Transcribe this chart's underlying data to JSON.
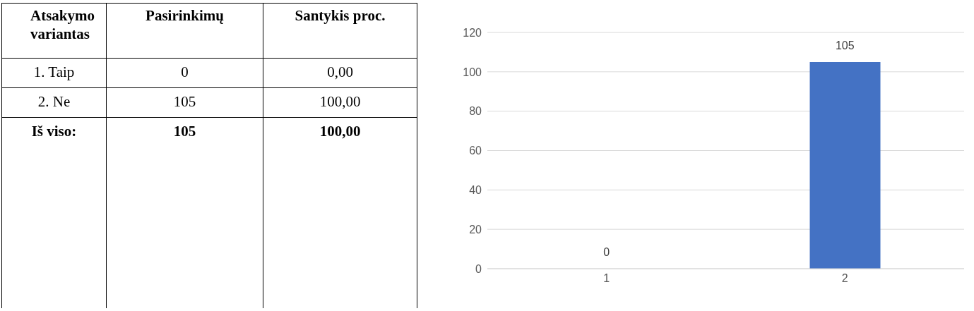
{
  "chart_data": [
    {
      "type": "other",
      "annotations": [
        "Atsakymo variantas",
        "Pasirinkimų",
        "Santykis proc.",
        "1. Taip",
        "0",
        "0,00",
        "2. Ne",
        "105",
        "100,00",
        "Iš viso:",
        "105",
        "100,00"
      ]
    },
    {
      "type": "bar",
      "categories": [
        "1",
        "2"
      ],
      "values": [
        0,
        105
      ],
      "color": "#4472c4",
      "ylim": [
        0,
        120
      ],
      "yticks": [
        0,
        20,
        40,
        60,
        80,
        100,
        120
      ],
      "grid": "y",
      "data_labels": true
    }
  ]
}
